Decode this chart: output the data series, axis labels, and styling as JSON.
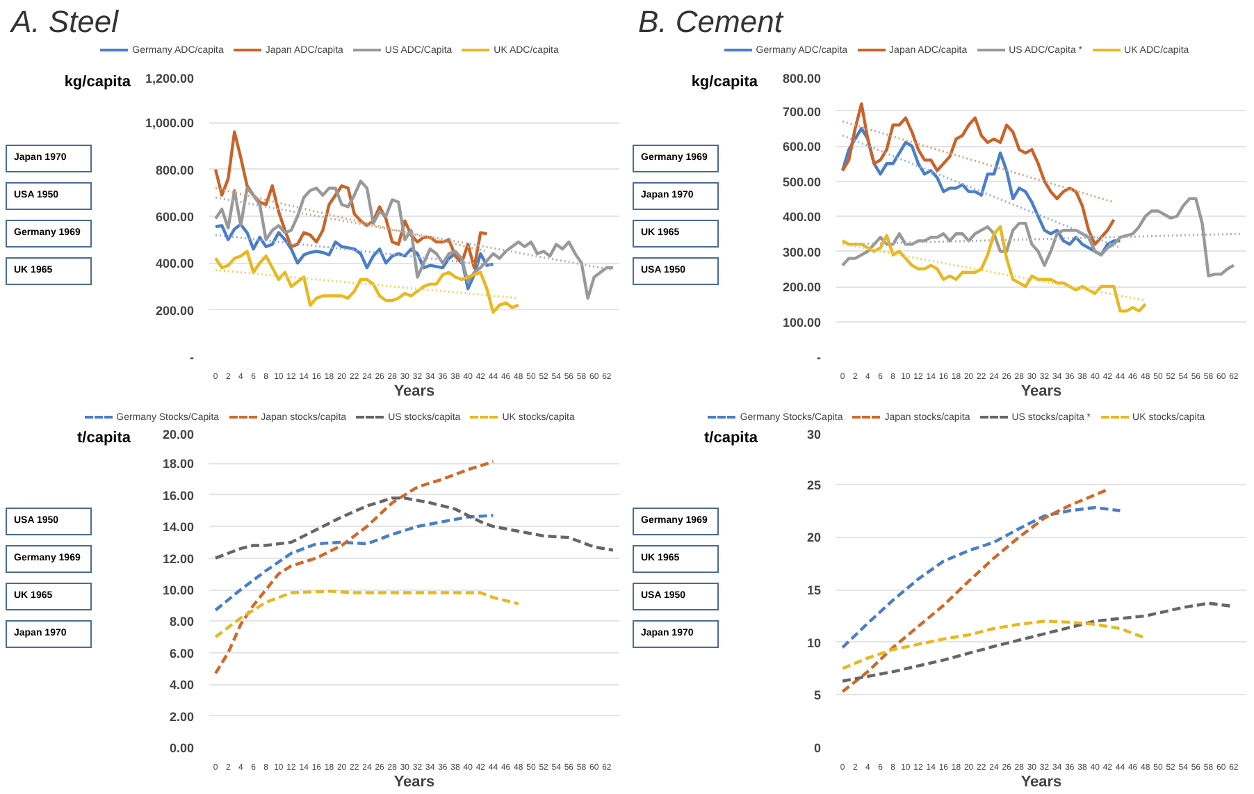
{
  "chart_data": [
    {
      "type": "line",
      "title": "A. Steel",
      "xlabel": "Years",
      "ylabel": "kg/capita",
      "line_style": "solid",
      "legend": "top",
      "grid": "y",
      "xlim": [
        -1,
        64
      ],
      "xticks": [
        0,
        2,
        4,
        6,
        8,
        10,
        12,
        14,
        16,
        18,
        20,
        22,
        24,
        26,
        28,
        30,
        32,
        34,
        36,
        38,
        40,
        42,
        44,
        46,
        48,
        50,
        52,
        54,
        56,
        58,
        60,
        62
      ],
      "ylim": [
        0,
        1200
      ],
      "yticks": [
        {
          "value": 0,
          "label": "-"
        },
        {
          "value": 200,
          "label": "200.00"
        },
        {
          "value": 400,
          "label": "400.00"
        },
        {
          "value": 600,
          "label": "600.00"
        },
        {
          "value": 800,
          "label": "800.00"
        },
        {
          "value": 1000,
          "label": "1,000.00"
        },
        {
          "value": 1200,
          "label": "1,200.00"
        }
      ],
      "annotations": [
        "Japan 1970",
        "USA 1950",
        "Germany 1969",
        "UK 1965"
      ],
      "series": [
        {
          "name": "Germany ADC/capita",
          "color": "#4a7ec8",
          "x": [
            0,
            1,
            2,
            3,
            4,
            5,
            6,
            7,
            8,
            9,
            10,
            11,
            12,
            13,
            14,
            15,
            16,
            17,
            18,
            19,
            20,
            21,
            22,
            23,
            24,
            25,
            26,
            27,
            28,
            29,
            30,
            31,
            32,
            33,
            34,
            35,
            36,
            37,
            38,
            39,
            40,
            41,
            42,
            43,
            44
          ],
          "values": [
            555,
            560,
            500,
            545,
            565,
            530,
            460,
            510,
            470,
            480,
            530,
            500,
            460,
            400,
            435,
            445,
            450,
            445,
            435,
            490,
            470,
            465,
            460,
            440,
            380,
            430,
            460,
            400,
            430,
            440,
            430,
            460,
            440,
            380,
            390,
            385,
            380,
            420,
            440,
            420,
            290,
            350,
            440,
            390,
            395
          ]
        },
        {
          "name": "Japan ADC/capita",
          "color": "#c8642a",
          "x": [
            0,
            1,
            2,
            3,
            4,
            5,
            6,
            7,
            8,
            9,
            10,
            11,
            12,
            13,
            14,
            15,
            16,
            17,
            18,
            19,
            20,
            21,
            22,
            23,
            24,
            25,
            26,
            27,
            28,
            29,
            30,
            31,
            32,
            33,
            34,
            35,
            36,
            37,
            38,
            39,
            40,
            41,
            42,
            43
          ],
          "values": [
            800,
            690,
            760,
            960,
            850,
            730,
            690,
            660,
            650,
            730,
            620,
            540,
            470,
            480,
            530,
            520,
            490,
            540,
            650,
            690,
            730,
            720,
            610,
            580,
            560,
            580,
            640,
            590,
            490,
            480,
            580,
            520,
            490,
            510,
            510,
            490,
            490,
            500,
            430,
            400,
            480,
            380,
            530,
            525
          ]
        },
        {
          "name": "US ADC/Capita",
          "color": "#999999",
          "x": [
            0,
            1,
            2,
            3,
            4,
            5,
            6,
            7,
            8,
            9,
            10,
            11,
            12,
            13,
            14,
            15,
            16,
            17,
            18,
            19,
            20,
            21,
            22,
            23,
            24,
            25,
            26,
            27,
            28,
            29,
            30,
            31,
            32,
            33,
            34,
            35,
            36,
            37,
            38,
            39,
            40,
            41,
            42,
            43,
            44,
            45,
            46,
            47,
            48,
            49,
            50,
            51,
            52,
            53,
            54,
            55,
            56,
            57,
            58,
            59,
            60,
            61,
            62,
            63
          ],
          "values": [
            590,
            630,
            550,
            710,
            560,
            720,
            690,
            650,
            500,
            540,
            560,
            530,
            540,
            600,
            680,
            710,
            720,
            690,
            720,
            720,
            650,
            640,
            690,
            750,
            720,
            570,
            620,
            600,
            670,
            660,
            500,
            540,
            340,
            400,
            460,
            440,
            400,
            440,
            450,
            420,
            320,
            360,
            380,
            410,
            440,
            420,
            450,
            470,
            490,
            470,
            490,
            440,
            450,
            430,
            480,
            460,
            490,
            440,
            400,
            250,
            340,
            360,
            380,
            380
          ]
        },
        {
          "name": "UK ADC/capita",
          "color": "#e8b820",
          "x": [
            0,
            1,
            2,
            3,
            4,
            5,
            6,
            7,
            8,
            9,
            10,
            11,
            12,
            13,
            14,
            15,
            16,
            17,
            18,
            19,
            20,
            21,
            22,
            23,
            24,
            25,
            26,
            27,
            28,
            29,
            30,
            31,
            32,
            33,
            34,
            35,
            36,
            37,
            38,
            39,
            40,
            41,
            42,
            43,
            44,
            45,
            46,
            47,
            48
          ],
          "values": [
            420,
            380,
            390,
            420,
            430,
            450,
            360,
            400,
            430,
            380,
            330,
            360,
            300,
            320,
            340,
            220,
            250,
            260,
            260,
            260,
            260,
            250,
            280,
            330,
            330,
            310,
            260,
            240,
            240,
            250,
            270,
            260,
            280,
            300,
            310,
            310,
            350,
            360,
            340,
            330,
            340,
            350,
            360,
            290,
            190,
            220,
            230,
            210,
            220
          ]
        },
        {
          "type": "line",
          "line_style": "dotted",
          "color": "#e0a070",
          "x": [
            0,
            43
          ],
          "values": [
            720,
            450
          ]
        },
        {
          "type": "line",
          "line_style": "dotted",
          "color": "#b0b0b0",
          "x": [
            0,
            63
          ],
          "values": [
            680,
            370
          ]
        },
        {
          "type": "line",
          "line_style": "dotted",
          "color": "#90b0e0",
          "x": [
            0,
            44
          ],
          "values": [
            520,
            390
          ]
        },
        {
          "type": "line",
          "line_style": "dotted",
          "color": "#f0d060",
          "x": [
            0,
            48
          ],
          "values": [
            370,
            250
          ]
        }
      ]
    },
    {
      "type": "line",
      "title": "B. Cement",
      "xlabel": "Years",
      "ylabel": "kg/capita",
      "line_style": "solid",
      "legend": "top",
      "grid": "y",
      "xlim": [
        -1,
        64
      ],
      "xticks": [
        0,
        2,
        4,
        6,
        8,
        10,
        12,
        14,
        16,
        18,
        20,
        22,
        24,
        26,
        28,
        30,
        32,
        34,
        36,
        38,
        40,
        42,
        44,
        46,
        48,
        50,
        52,
        54,
        56,
        58,
        60,
        62
      ],
      "ylim": [
        0,
        800
      ],
      "yticks": [
        {
          "value": 0,
          "label": "-"
        },
        {
          "value": 100,
          "label": "100.00"
        },
        {
          "value": 200,
          "label": "200.00"
        },
        {
          "value": 300,
          "label": "300.00"
        },
        {
          "value": 400,
          "label": "400.00"
        },
        {
          "value": 500,
          "label": "500.00"
        },
        {
          "value": 600,
          "label": "600.00"
        },
        {
          "value": 700,
          "label": "700.00"
        },
        {
          "value": 800,
          "label": "800.00"
        }
      ],
      "annotations": [
        "Germany 1969",
        "Japan 1970",
        "UK 1965",
        "USA 1950"
      ],
      "series": [
        {
          "name": "Germany ADC/capita",
          "color": "#4a7ec8",
          "x": [
            0,
            1,
            2,
            3,
            4,
            5,
            6,
            7,
            8,
            9,
            10,
            11,
            12,
            13,
            14,
            15,
            16,
            17,
            18,
            19,
            20,
            21,
            22,
            23,
            24,
            25,
            26,
            27,
            28,
            29,
            30,
            31,
            32,
            33,
            34,
            35,
            36,
            37,
            38,
            39,
            40,
            41,
            42,
            43,
            44
          ],
          "values": [
            530,
            590,
            620,
            650,
            620,
            550,
            520,
            550,
            550,
            580,
            610,
            600,
            550,
            520,
            530,
            510,
            470,
            480,
            480,
            490,
            470,
            470,
            460,
            520,
            520,
            580,
            530,
            450,
            480,
            470,
            440,
            400,
            360,
            350,
            360,
            330,
            320,
            340,
            320,
            310,
            300,
            290,
            320,
            330,
            330
          ]
        },
        {
          "name": "Japan ADC/capita",
          "color": "#c8642a",
          "x": [
            0,
            1,
            2,
            3,
            4,
            5,
            6,
            7,
            8,
            9,
            10,
            11,
            12,
            13,
            14,
            15,
            16,
            17,
            18,
            19,
            20,
            21,
            22,
            23,
            24,
            25,
            26,
            27,
            28,
            29,
            30,
            31,
            32,
            33,
            34,
            35,
            36,
            37,
            38,
            39,
            40,
            41,
            42,
            43
          ],
          "values": [
            530,
            560,
            650,
            720,
            620,
            550,
            560,
            590,
            660,
            660,
            680,
            640,
            590,
            560,
            560,
            530,
            550,
            570,
            620,
            630,
            660,
            680,
            630,
            610,
            620,
            610,
            660,
            640,
            590,
            580,
            590,
            550,
            500,
            470,
            450,
            470,
            480,
            470,
            430,
            360,
            320,
            340,
            360,
            390
          ]
        },
        {
          "name": "US ADC/Capita *",
          "color": "#999999",
          "x": [
            0,
            1,
            2,
            3,
            4,
            5,
            6,
            7,
            8,
            9,
            10,
            11,
            12,
            13,
            14,
            15,
            16,
            17,
            18,
            19,
            20,
            21,
            22,
            23,
            24,
            25,
            26,
            27,
            28,
            29,
            30,
            31,
            32,
            33,
            34,
            35,
            36,
            37,
            38,
            39,
            40,
            41,
            42,
            43,
            44,
            45,
            46,
            47,
            48,
            49,
            50,
            51,
            52,
            53,
            54,
            55,
            56,
            57,
            58,
            59,
            60,
            61,
            62
          ],
          "values": [
            260,
            280,
            280,
            290,
            300,
            320,
            340,
            320,
            320,
            350,
            320,
            320,
            330,
            330,
            340,
            340,
            350,
            330,
            350,
            350,
            330,
            350,
            360,
            370,
            350,
            300,
            300,
            360,
            380,
            380,
            320,
            300,
            260,
            300,
            350,
            360,
            360,
            360,
            350,
            340,
            300,
            290,
            310,
            320,
            340,
            345,
            350,
            370,
            400,
            415,
            415,
            405,
            395,
            400,
            430,
            450,
            450,
            380,
            230,
            235,
            235,
            250,
            260
          ]
        },
        {
          "name": "UK ADC/capita",
          "color": "#e8b820",
          "x": [
            0,
            1,
            2,
            3,
            4,
            5,
            6,
            7,
            8,
            9,
            10,
            11,
            12,
            13,
            14,
            15,
            16,
            17,
            18,
            19,
            20,
            21,
            22,
            23,
            24,
            25,
            26,
            27,
            28,
            29,
            30,
            31,
            32,
            33,
            34,
            35,
            36,
            37,
            38,
            39,
            40,
            41,
            42,
            43,
            44,
            45,
            46,
            47,
            48
          ],
          "values": [
            330,
            320,
            320,
            320,
            310,
            300,
            310,
            345,
            290,
            300,
            280,
            260,
            250,
            250,
            260,
            250,
            220,
            230,
            220,
            240,
            240,
            240,
            250,
            290,
            350,
            370,
            280,
            220,
            210,
            200,
            230,
            220,
            220,
            220,
            210,
            210,
            200,
            190,
            200,
            190,
            180,
            200,
            200,
            200,
            130,
            130,
            140,
            130,
            150
          ]
        },
        {
          "type": "line",
          "line_style": "dotted",
          "color": "#e0a070",
          "x": [
            0,
            43
          ],
          "values": [
            670,
            440
          ]
        },
        {
          "type": "line",
          "line_style": "dotted",
          "color": "#90b0e0",
          "x": [
            0,
            44
          ],
          "values": [
            630,
            310
          ]
        },
        {
          "type": "line",
          "line_style": "dotted",
          "color": "#b0b0b0",
          "x": [
            0,
            63
          ],
          "values": [
            320,
            350
          ]
        },
        {
          "type": "line",
          "line_style": "dotted",
          "color": "#f0d060",
          "x": [
            0,
            48
          ],
          "values": [
            320,
            160
          ]
        }
      ]
    },
    {
      "type": "line",
      "xlabel": "Years",
      "ylabel": "t/capita",
      "line_style": "dashed",
      "legend": "top",
      "grid": "y",
      "xlim": [
        -1,
        64
      ],
      "xticks": [
        0,
        2,
        4,
        6,
        8,
        10,
        12,
        14,
        16,
        18,
        20,
        22,
        24,
        26,
        28,
        30,
        32,
        34,
        36,
        38,
        40,
        42,
        44,
        46,
        48,
        50,
        52,
        54,
        56,
        58,
        60,
        62
      ],
      "ylim": [
        0,
        20
      ],
      "yticks": [
        {
          "value": 0,
          "label": "0.00"
        },
        {
          "value": 2,
          "label": "2.00"
        },
        {
          "value": 4,
          "label": "4.00"
        },
        {
          "value": 6,
          "label": "6.00"
        },
        {
          "value": 8,
          "label": "8.00"
        },
        {
          "value": 10,
          "label": "10.00"
        },
        {
          "value": 12,
          "label": "12.00"
        },
        {
          "value": 14,
          "label": "14.00"
        },
        {
          "value": 16,
          "label": "16.00"
        },
        {
          "value": 18,
          "label": "18.00"
        },
        {
          "value": 20,
          "label": "20.00"
        }
      ],
      "annotations": [
        "USA 1950",
        "Germany 1969",
        "UK 1965",
        "Japan 1970"
      ],
      "series": [
        {
          "name": "Germany Stocks/Capita",
          "color": "#4a7ec8",
          "x": [
            0,
            4,
            8,
            12,
            16,
            20,
            24,
            28,
            32,
            36,
            40,
            44
          ],
          "values": [
            8.7,
            10.0,
            11.2,
            12.3,
            12.9,
            13.0,
            12.9,
            13.5,
            14.0,
            14.3,
            14.6,
            14.7
          ]
        },
        {
          "name": "Japan stocks/capita",
          "color": "#d0692a",
          "x": [
            0,
            2,
            4,
            6,
            8,
            10,
            12,
            16,
            20,
            24,
            28,
            32,
            36,
            40,
            44
          ],
          "values": [
            4.7,
            6.0,
            7.8,
            9.0,
            10.0,
            11.0,
            11.5,
            12.0,
            12.8,
            14.0,
            15.5,
            16.5,
            17.0,
            17.6,
            18.1
          ]
        },
        {
          "name": "US stocks/capita",
          "color": "#666666",
          "x": [
            0,
            4,
            6,
            8,
            12,
            16,
            20,
            24,
            28,
            30,
            34,
            38,
            42,
            44,
            48,
            52,
            56,
            58,
            60,
            63
          ],
          "values": [
            12.0,
            12.6,
            12.8,
            12.8,
            13.0,
            13.8,
            14.6,
            15.3,
            15.8,
            15.8,
            15.5,
            15.1,
            14.3,
            14.0,
            13.7,
            13.4,
            13.3,
            13.0,
            12.7,
            12.5
          ]
        },
        {
          "name": "UK stocks/capita",
          "color": "#e8b820",
          "x": [
            0,
            4,
            8,
            12,
            18,
            22,
            26,
            30,
            36,
            42,
            44,
            48
          ],
          "values": [
            7.0,
            8.2,
            9.2,
            9.8,
            9.9,
            9.8,
            9.8,
            9.8,
            9.8,
            9.8,
            9.5,
            9.1
          ]
        }
      ]
    },
    {
      "type": "line",
      "xlabel": "Years",
      "ylabel": "t/capita",
      "line_style": "dashed",
      "legend": "top",
      "grid": "y",
      "xlim": [
        -1,
        64
      ],
      "xticks": [
        0,
        2,
        4,
        6,
        8,
        10,
        12,
        14,
        16,
        18,
        20,
        22,
        24,
        26,
        28,
        30,
        32,
        34,
        36,
        38,
        40,
        42,
        44,
        46,
        48,
        50,
        52,
        54,
        56,
        58,
        60,
        62
      ],
      "ylim": [
        0,
        30
      ],
      "yticks": [
        0,
        5,
        10,
        15,
        20,
        25,
        30
      ],
      "annotations": [
        "Germany 1969",
        "UK 1965",
        "USA 1950",
        "Japan 1970"
      ],
      "series": [
        {
          "name": "Germany Stocks/Capita",
          "color": "#4a7ec8",
          "x": [
            0,
            4,
            8,
            12,
            16,
            20,
            24,
            28,
            32,
            36,
            40,
            44
          ],
          "values": [
            9.5,
            11.8,
            14.0,
            16.0,
            17.7,
            18.7,
            19.5,
            20.8,
            22.0,
            22.5,
            22.8,
            22.5
          ]
        },
        {
          "name": "Japan stocks/capita",
          "color": "#d0692a",
          "x": [
            0,
            4,
            8,
            12,
            16,
            20,
            24,
            28,
            32,
            36,
            40,
            42
          ],
          "values": [
            5.3,
            7.2,
            9.5,
            11.5,
            13.5,
            15.8,
            18.0,
            20.0,
            21.8,
            23.0,
            24.0,
            24.5
          ]
        },
        {
          "name": "US stocks/capita *",
          "color": "#666666",
          "x": [
            0,
            8,
            16,
            24,
            32,
            40,
            48,
            54,
            58,
            62
          ],
          "values": [
            6.3,
            7.2,
            8.3,
            9.6,
            10.8,
            12.0,
            12.5,
            13.3,
            13.7,
            13.4
          ]
        },
        {
          "name": "UK stocks/capita",
          "color": "#e8b820",
          "x": [
            0,
            4,
            8,
            12,
            16,
            20,
            24,
            28,
            32,
            36,
            40,
            44,
            48
          ],
          "values": [
            7.5,
            8.5,
            9.3,
            9.8,
            10.3,
            10.7,
            11.3,
            11.7,
            12.0,
            11.9,
            11.7,
            11.3,
            10.4
          ]
        }
      ]
    }
  ]
}
